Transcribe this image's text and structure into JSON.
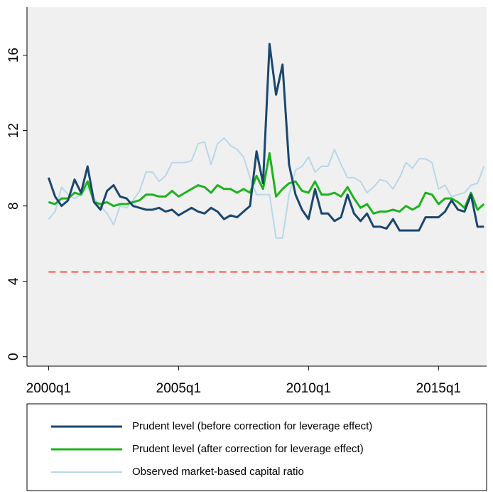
{
  "chart_data": {
    "type": "line",
    "x": [
      2000,
      2000.25,
      2000.5,
      2000.75,
      2001,
      2001.25,
      2001.5,
      2001.75,
      2002,
      2002.25,
      2002.5,
      2002.75,
      2003,
      2003.25,
      2003.5,
      2003.75,
      2004,
      2004.25,
      2004.5,
      2004.75,
      2005,
      2005.25,
      2005.5,
      2005.75,
      2006,
      2006.25,
      2006.5,
      2006.75,
      2007,
      2007.25,
      2007.5,
      2007.75,
      2008,
      2008.25,
      2008.5,
      2008.75,
      2009,
      2009.25,
      2009.5,
      2009.75,
      2010,
      2010.25,
      2010.5,
      2010.75,
      2011,
      2011.25,
      2011.5,
      2011.75,
      2012,
      2012.25,
      2012.5,
      2012.75,
      2013,
      2013.25,
      2013.5,
      2013.75,
      2014,
      2014.25,
      2014.5,
      2014.75,
      2015,
      2015.25,
      2015.5,
      2015.75,
      2016,
      2016.25,
      2016.5,
      2016.75
    ],
    "series": [
      {
        "name": "Prudent level (before correction for leverage effect)",
        "color": "#1a476f",
        "values": [
          9.5,
          8.5,
          8.0,
          8.3,
          9.4,
          8.7,
          10.1,
          8.2,
          7.8,
          8.8,
          9.1,
          8.5,
          8.4,
          8.0,
          7.9,
          7.8,
          7.8,
          7.9,
          7.7,
          7.8,
          7.5,
          7.7,
          7.9,
          7.7,
          7.6,
          7.9,
          7.7,
          7.3,
          7.5,
          7.4,
          7.7,
          8.0,
          10.9,
          9.2,
          16.6,
          13.9,
          15.5,
          10.2,
          8.6,
          7.8,
          7.3,
          8.9,
          7.6,
          7.6,
          7.2,
          7.4,
          8.6,
          7.6,
          7.2,
          7.6,
          6.9,
          6.9,
          6.8,
          7.3,
          6.7,
          6.7,
          6.7,
          6.7,
          7.4,
          7.4,
          7.4,
          7.7,
          8.3,
          7.8,
          7.7,
          8.6,
          6.9,
          6.9
        ]
      },
      {
        "name": "Prudent level (after correction for leverage effect)",
        "color": "#1db31d",
        "values": [
          8.2,
          8.1,
          8.4,
          8.4,
          8.7,
          8.6,
          9.3,
          8.2,
          8.1,
          8.2,
          8.0,
          8.1,
          8.1,
          8.2,
          8.3,
          8.6,
          8.6,
          8.5,
          8.5,
          8.8,
          8.5,
          8.7,
          8.9,
          9.1,
          9.0,
          8.7,
          9.1,
          8.9,
          8.9,
          8.7,
          8.9,
          8.7,
          9.6,
          8.9,
          10.8,
          8.5,
          8.9,
          9.2,
          9.3,
          8.8,
          8.7,
          9.3,
          8.6,
          8.6,
          8.7,
          8.5,
          9.0,
          8.4,
          7.9,
          8.1,
          7.6,
          7.7,
          7.7,
          7.8,
          7.7,
          8.0,
          7.8,
          8.0,
          8.7,
          8.6,
          8.1,
          8.4,
          8.4,
          8.2,
          7.9,
          8.7,
          7.8,
          8.1
        ]
      },
      {
        "name": "Observed market-based capital ratio",
        "color": "#b7d8e8",
        "values": [
          7.3,
          7.7,
          9.0,
          8.6,
          8.4,
          8.6,
          9.0,
          8.4,
          8.0,
          7.6,
          7.0,
          8.0,
          7.9,
          8.3,
          8.8,
          9.8,
          9.8,
          9.3,
          9.6,
          10.3,
          10.3,
          10.3,
          10.4,
          11.3,
          11.4,
          10.2,
          11.3,
          11.6,
          11.2,
          11.0,
          10.6,
          9.5,
          8.6,
          8.6,
          8.6,
          6.3,
          6.3,
          8.6,
          9.9,
          10.1,
          10.6,
          9.8,
          10.1,
          10.1,
          11.0,
          10.2,
          9.5,
          9.5,
          9.3,
          8.7,
          9.0,
          9.4,
          9.3,
          8.9,
          9.5,
          10.3,
          10.0,
          10.5,
          10.5,
          10.3,
          8.9,
          9.1,
          8.5,
          8.6,
          8.7,
          9.1,
          9.2,
          10.1
        ]
      }
    ],
    "hline": 4.5,
    "hline_color": "#ff4d4d",
    "hline_dashed": true,
    "xlim": [
      1999.17,
      2016.85
    ],
    "xticks": [
      {
        "value": 2000,
        "label": "2000q1"
      },
      {
        "value": 2005,
        "label": "2005q1"
      },
      {
        "value": 2010,
        "label": "2010q1"
      },
      {
        "value": 2015,
        "label": "2015q1"
      }
    ],
    "ylim": [
      -0.5,
      18.55
    ],
    "yticks": [
      0,
      4,
      8,
      12,
      16
    ],
    "legend": "bottom"
  }
}
